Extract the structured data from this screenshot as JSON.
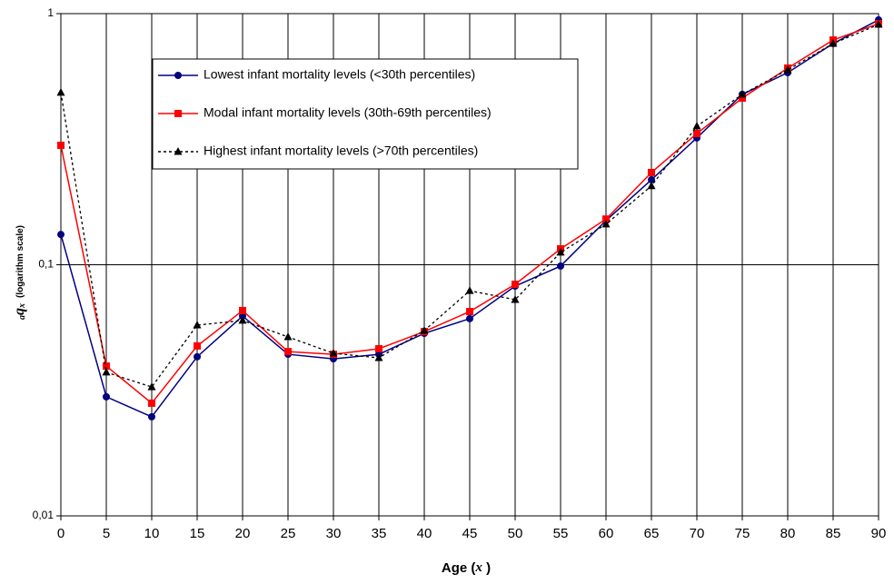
{
  "chart_data": {
    "type": "line",
    "x_label": [
      "Age (",
      "x",
      " )"
    ],
    "y_label": {
      "prefix": "a",
      "symbol": "q",
      "subscript": "x",
      "note": "(logarithm scale)"
    },
    "x": [
      0,
      5,
      10,
      15,
      20,
      25,
      30,
      35,
      40,
      45,
      50,
      55,
      60,
      65,
      70,
      75,
      80,
      85,
      90
    ],
    "xlim": [
      0,
      90
    ],
    "xticks": [
      0,
      5,
      10,
      15,
      20,
      25,
      30,
      35,
      40,
      45,
      50,
      55,
      60,
      65,
      70,
      75,
      80,
      85,
      90
    ],
    "ylim": [
      0.01,
      1
    ],
    "yticks": [
      {
        "value": 0.01,
        "label": "0,01"
      },
      {
        "value": 0.1,
        "label": "0,1"
      },
      1
    ],
    "log_y": true,
    "grid_x": true,
    "series": [
      {
        "name": "Lowest infant mortality levels (<30th percentiles)",
        "color": "#000080",
        "marker": "circle",
        "dashed": false,
        "values": [
          0.132,
          0.0298,
          0.0248,
          0.043,
          0.0625,
          0.044,
          0.0422,
          0.044,
          0.0533,
          0.061,
          0.0822,
          0.0988,
          0.15,
          0.218,
          0.32,
          0.477,
          0.582,
          0.76,
          0.944
        ]
      },
      {
        "name": "Modal infant mortality levels (30th-69th percentiles)",
        "color": "#ff0000",
        "marker": "square",
        "dashed": false,
        "values": [
          0.299,
          0.0395,
          0.0281,
          0.0475,
          0.0657,
          0.0451,
          0.044,
          0.0463,
          0.0542,
          0.0651,
          0.0836,
          0.1157,
          0.152,
          0.233,
          0.333,
          0.461,
          0.607,
          0.785,
          0.912
        ]
      },
      {
        "name": "Highest infant mortality levels (>70th percentiles)",
        "color": "#000000",
        "marker": "triangle",
        "dashed": true,
        "values": [
          0.485,
          0.0373,
          0.0326,
          0.0575,
          0.06,
          0.0516,
          0.0444,
          0.0426,
          0.0547,
          0.0788,
          0.0726,
          0.112,
          0.145,
          0.206,
          0.356,
          0.477,
          0.597,
          0.76,
          0.905
        ]
      }
    ]
  }
}
